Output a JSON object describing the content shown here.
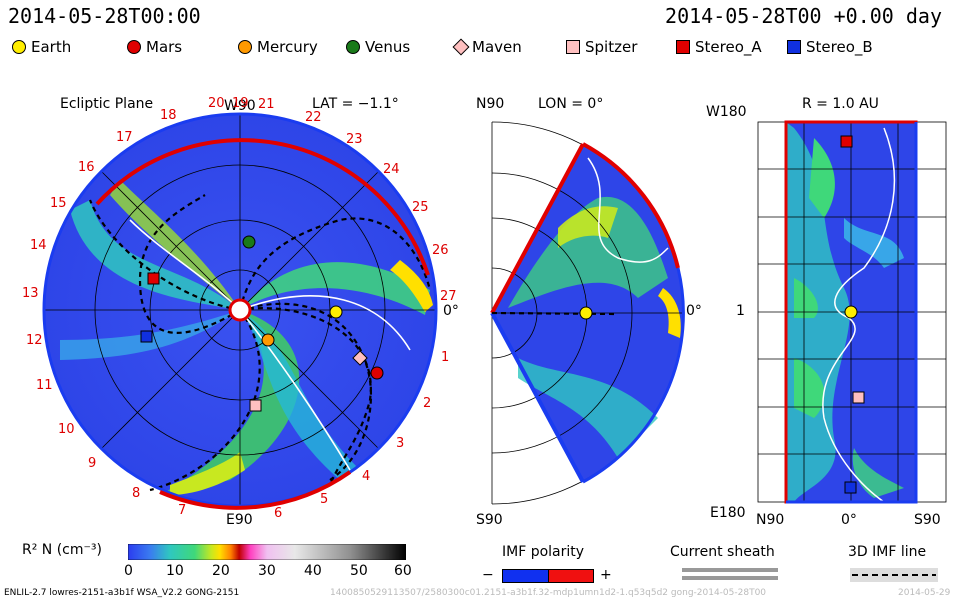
{
  "header": {
    "timestamp_left": "2014-05-28T00:00",
    "timestamp_right": "2014-05-28T00 +0.00 day"
  },
  "legend": [
    {
      "name": "Earth",
      "color": "#ffee00",
      "shape": "circle"
    },
    {
      "name": "Mars",
      "color": "#e00000",
      "shape": "circle"
    },
    {
      "name": "Mercury",
      "color": "#ff9900",
      "shape": "circle"
    },
    {
      "name": "Venus",
      "color": "#1a7a1a",
      "shape": "circle"
    },
    {
      "name": "Maven",
      "color": "#ffc0c0",
      "shape": "diamond"
    },
    {
      "name": "Spitzer",
      "color": "#ffc0c0",
      "shape": "square"
    },
    {
      "name": "Stereo_A",
      "color": "#e00000",
      "shape": "square"
    },
    {
      "name": "Stereo_B",
      "color": "#1030e0",
      "shape": "square"
    }
  ],
  "ecliptic": {
    "title": "Ecliptic Plane",
    "lat_label": "LAT = −1.1°",
    "top_label": "W90",
    "bottom_label": "E90",
    "right_label": "0°",
    "carrington_numbers": [
      "20",
      "21",
      "22",
      "23",
      "24",
      "25",
      "26",
      "27",
      "1",
      "2",
      "3",
      "4",
      "5",
      "6",
      "7",
      "8",
      "9",
      "10",
      "11",
      "12",
      "13",
      "14",
      "15",
      "16",
      "17",
      "18",
      "19"
    ]
  },
  "meridional": {
    "title": "LON = 0°",
    "top_label": "N90",
    "bottom_label": "S90",
    "right_label": "0°"
  },
  "rsphere": {
    "title": "R = 1.0 AU",
    "top_label": "W180",
    "bottom_label": "E180",
    "middle_label": "1",
    "x_labels": [
      "N90",
      "0°",
      "S90"
    ]
  },
  "colorbar": {
    "label": "R² N (cm⁻³)",
    "ticks": [
      "0",
      "10",
      "20",
      "30",
      "40",
      "50",
      "60"
    ]
  },
  "imf": {
    "polarity_label": "IMF polarity",
    "minus": "−",
    "plus": "+",
    "sheath_label": "Current sheath",
    "line_label": "3D IMF line"
  },
  "footer": {
    "left": "ENLIL-2.7 lowres-2151-a3b1f WSA_V2.2 GONG-2151",
    "middle": "1400850529113507/2580300c01.2151-a3b1f.32-mdp1umn1d2-1.q53q5d2 gong-2014-05-28T00",
    "right": "2014-05-29"
  }
}
